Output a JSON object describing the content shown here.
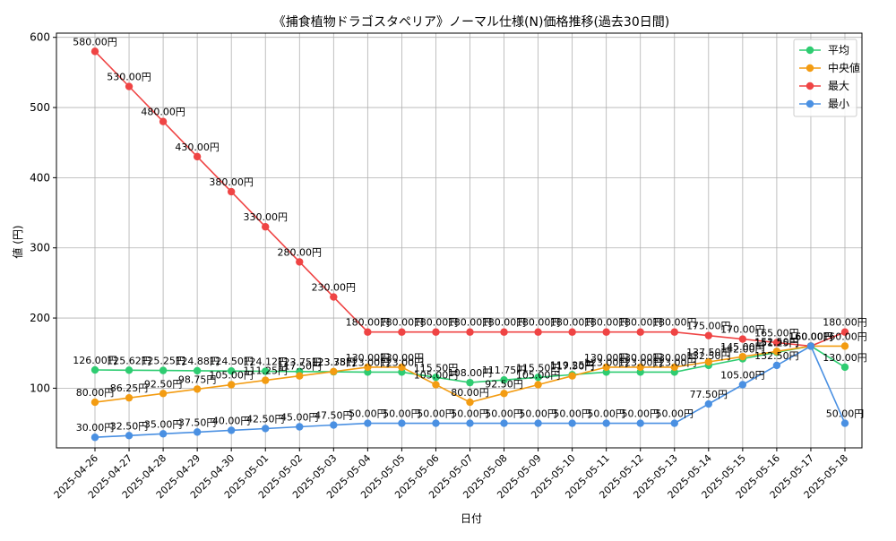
{
  "chart_data": {
    "type": "line",
    "title": "《捕食植物ドラゴスタペリア》ノーマル仕様(N)価格推移(過去30日間)",
    "xlabel": "日付",
    "ylabel": "値 (円)",
    "ylim": [
      0,
      600
    ],
    "y_ticks": [
      100,
      200,
      300,
      400,
      500,
      600
    ],
    "grid": true,
    "legend_position": "top-right",
    "label_suffix": "円",
    "categories": [
      "2025-04-26",
      "2025-04-27",
      "2025-04-28",
      "2025-04-29",
      "2025-04-30",
      "2025-05-01",
      "2025-05-02",
      "2025-05-03",
      "2025-05-04",
      "2025-05-05",
      "2025-05-06",
      "2025-05-07",
      "2025-05-08",
      "2025-05-09",
      "2025-05-10",
      "2025-05-11",
      "2025-05-12",
      "2025-05-13",
      "2025-05-14",
      "2025-05-15",
      "2025-05-16",
      "2025-05-17",
      "2025-05-18"
    ],
    "series": [
      {
        "name": "平均",
        "color": "#2ecc71",
        "values": [
          126.0,
          125.62,
          125.25,
          124.88,
          124.5,
          124.12,
          123.75,
          123.38,
          123.0,
          123.0,
          115.5,
          108.0,
          111.75,
          115.5,
          119.25,
          123.0,
          123.0,
          123.0,
          132.5,
          142.0,
          151.25,
          160.0,
          130.0
        ]
      },
      {
        "name": "中央値",
        "color": "#f39c12",
        "values": [
          80.0,
          86.25,
          92.5,
          98.75,
          105.0,
          111.25,
          117.5,
          123.75,
          130.0,
          130.0,
          105.0,
          80.0,
          92.5,
          105.0,
          117.5,
          130.0,
          130.0,
          130.0,
          137.5,
          145.0,
          152.5,
          160.0,
          160.0
        ]
      },
      {
        "name": "最大",
        "color": "#ef4444",
        "values": [
          580.0,
          530.0,
          480.0,
          430.0,
          380.0,
          330.0,
          280.0,
          230.0,
          180.0,
          180.0,
          180.0,
          180.0,
          180.0,
          180.0,
          180.0,
          180.0,
          180.0,
          180.0,
          175.0,
          170.0,
          165.0,
          160.0,
          180.0
        ]
      },
      {
        "name": "最小",
        "color": "#4a90e2",
        "values": [
          30.0,
          32.5,
          35.0,
          37.5,
          40.0,
          42.5,
          45.0,
          47.5,
          50.0,
          50.0,
          50.0,
          50.0,
          50.0,
          50.0,
          50.0,
          50.0,
          50.0,
          50.0,
          77.5,
          105.0,
          132.5,
          160.0,
          50.0
        ]
      }
    ]
  }
}
